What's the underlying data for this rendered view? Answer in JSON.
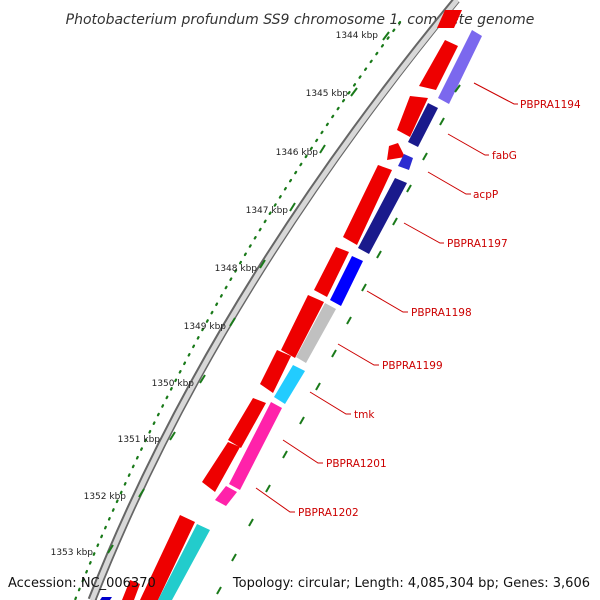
{
  "map": {
    "title": "Photobacterium profundum SS9 chromosome 1, complete genome",
    "accession": "Accession: NC_006370",
    "summary": "Topology: circular; Length: 4,085,304 bp; Genes: 3,606"
  },
  "ruler": {
    "ticks": [
      "1344 kbp",
      "1345 kbp",
      "1346 kbp",
      "1347 kbp",
      "1348 kbp",
      "1349 kbp",
      "1350 kbp",
      "1351 kbp",
      "1352 kbp",
      "1353 kbp"
    ]
  },
  "genes": [
    {
      "name": "PBPRA1194",
      "color": "#7b68ee"
    },
    {
      "name": "fabG",
      "color": "#1a1a8c"
    },
    {
      "name": "acpP",
      "color": "#2b2bd0"
    },
    {
      "name": "PBPRA1197",
      "color": "#1a1a8c"
    },
    {
      "name": "PBPRA1198",
      "color": "#0000ff"
    },
    {
      "name": "PBPRA1199",
      "color": "#c0c0c0"
    },
    {
      "name": "tmk",
      "color": "#22ccff"
    },
    {
      "name": "PBPRA1201",
      "color": "#ff22aa"
    },
    {
      "name": "PBPRA1202",
      "color": "#ff22aa"
    }
  ],
  "colors": {
    "cds_forward": "#ee0000",
    "backbone": "#8c8c8c",
    "tick_green": "#1a7a1a",
    "leader_red": "#cc0000",
    "extra_teal": "#22cccc",
    "extra_blue": "#0000cc"
  }
}
